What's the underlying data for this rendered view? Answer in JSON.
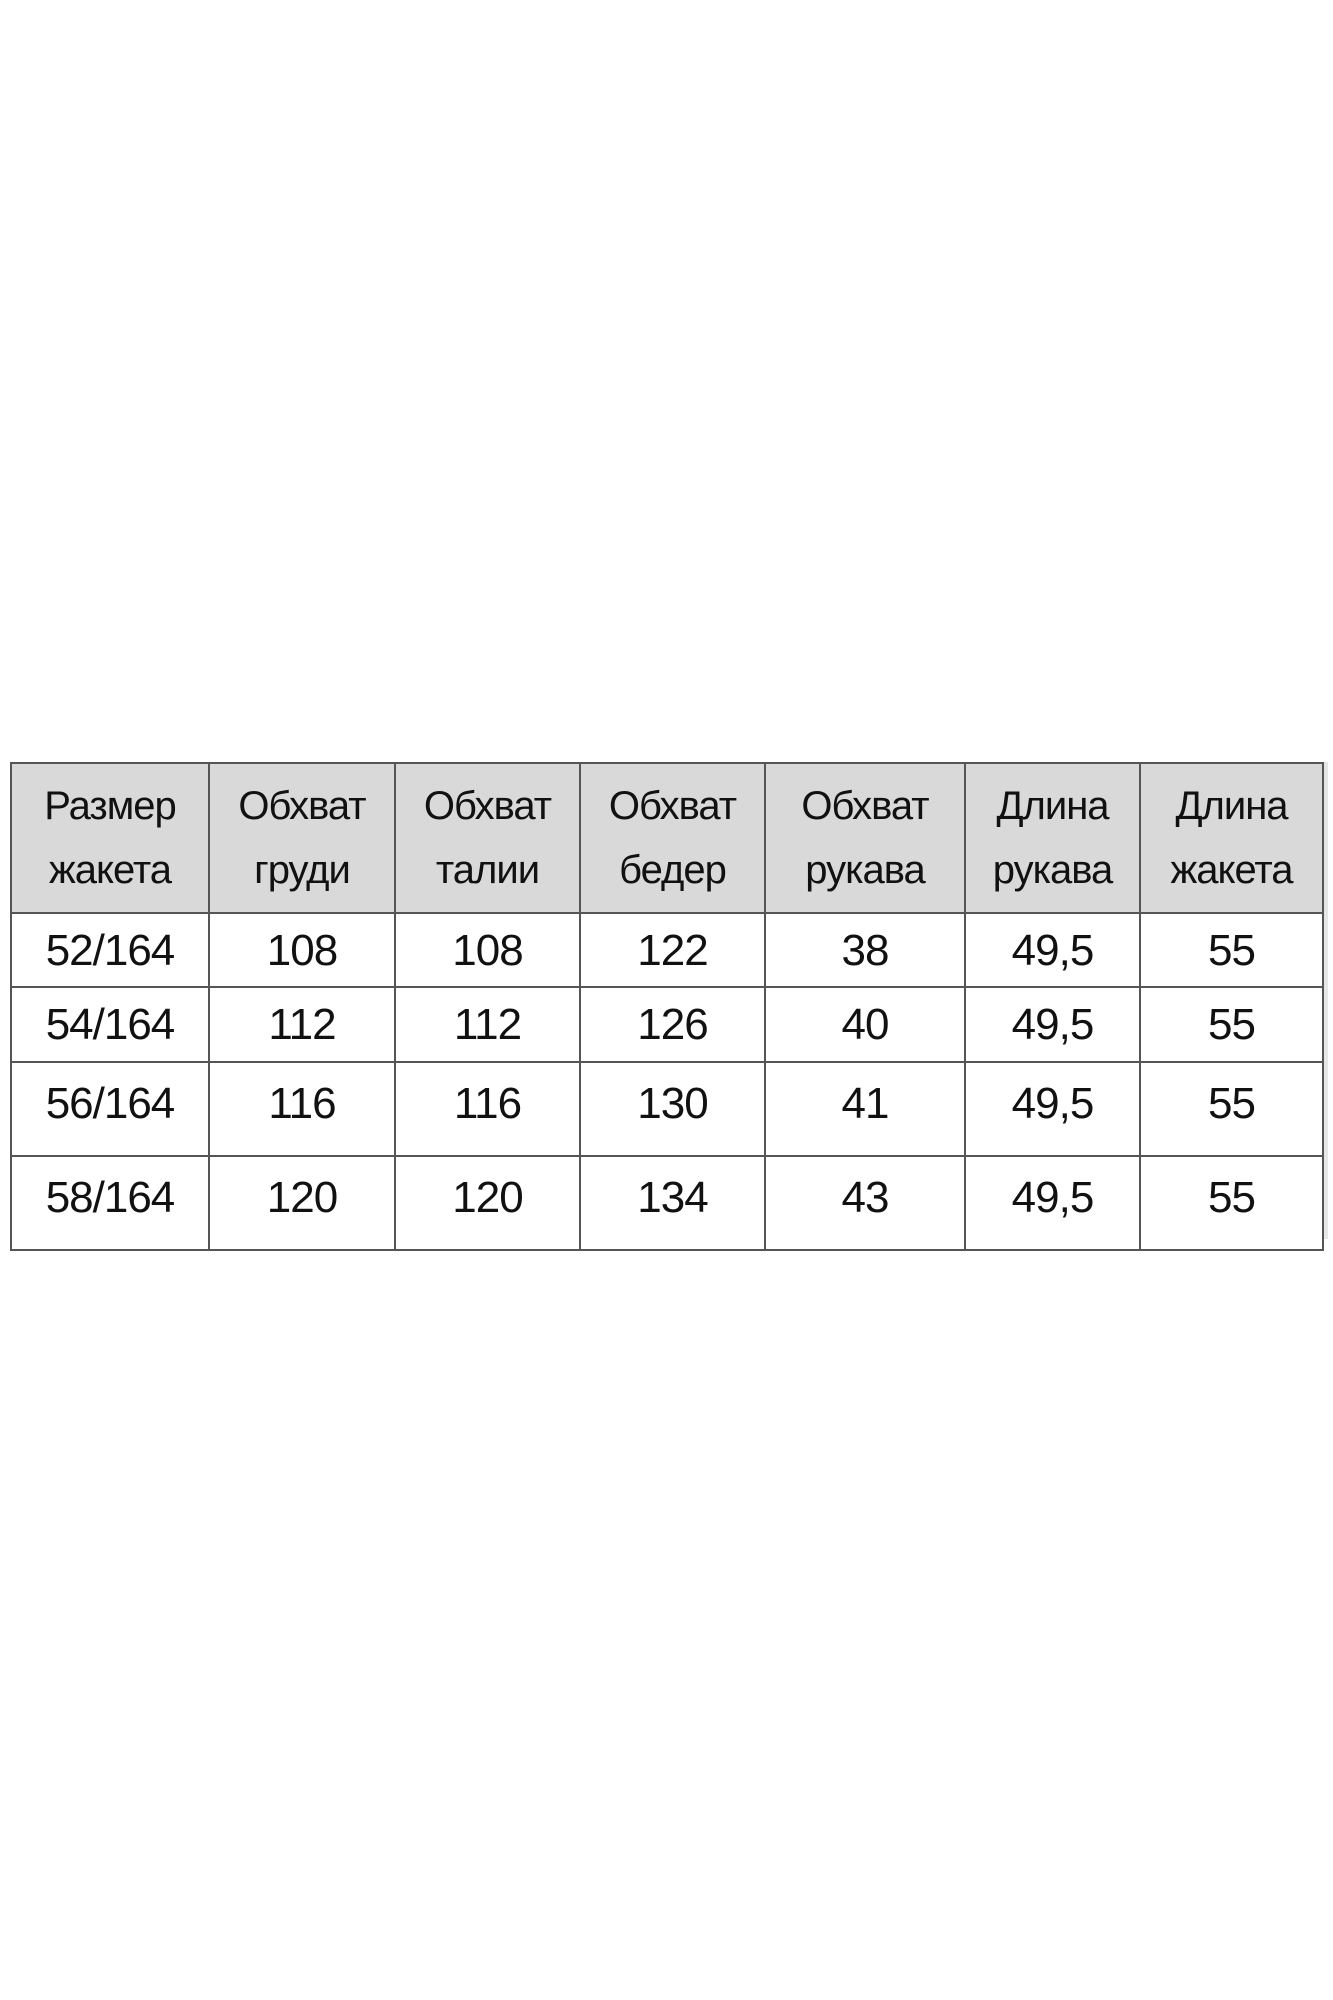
{
  "table": {
    "headers": [
      [
        "Размер",
        "жакета"
      ],
      [
        "Обхват",
        "груди"
      ],
      [
        "Обхват",
        "талии"
      ],
      [
        "Обхват",
        "бедер"
      ],
      [
        "Обхват",
        "рукава"
      ],
      [
        "Длина",
        "рукава"
      ],
      [
        "Длина",
        "жакета"
      ]
    ],
    "rows": [
      [
        "52/164",
        "108",
        "108",
        "122",
        "38",
        "49,5",
        "55"
      ],
      [
        "54/164",
        "112",
        "112",
        "126",
        "40",
        "49,5",
        "55"
      ],
      [
        "56/164",
        "116",
        "116",
        "130",
        "41",
        "49,5",
        "55"
      ],
      [
        "58/164",
        "120",
        "120",
        "134",
        "43",
        "49,5",
        "55"
      ]
    ],
    "header_bg": "#d9d9d9"
  }
}
